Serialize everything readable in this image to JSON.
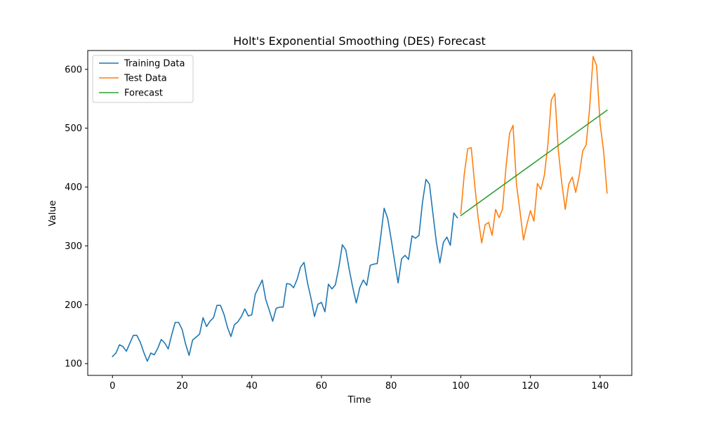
{
  "chart_data": {
    "type": "line",
    "title": "Holt's Exponential Smoothing (DES) Forecast",
    "xlabel": "Time",
    "ylabel": "Value",
    "xlim": [
      -7.1,
      149.1
    ],
    "ylim": [
      80,
      632
    ],
    "xticks": [
      0,
      20,
      40,
      60,
      80,
      100,
      120,
      140
    ],
    "yticks": [
      100,
      200,
      300,
      400,
      500,
      600
    ],
    "grid": false,
    "legend_position": "upper left",
    "series": [
      {
        "name": "Training Data",
        "color": "#1f77b4",
        "x_start": 0,
        "values": [
          112,
          118,
          132,
          129,
          121,
          135,
          148,
          148,
          136,
          119,
          104,
          118,
          115,
          126,
          141,
          135,
          125,
          149,
          170,
          170,
          158,
          133,
          114,
          140,
          145,
          150,
          178,
          163,
          172,
          178,
          199,
          199,
          184,
          162,
          146,
          166,
          171,
          180,
          193,
          181,
          183,
          218,
          230,
          242,
          209,
          191,
          172,
          194,
          196,
          196,
          236,
          235,
          229,
          243,
          264,
          272,
          237,
          211,
          180,
          201,
          204,
          188,
          235,
          227,
          234,
          264,
          302,
          293,
          259,
          229,
          203,
          229,
          242,
          233,
          267,
          269,
          270,
          315,
          364,
          347,
          312,
          274,
          237,
          278,
          284,
          277,
          317,
          313,
          318,
          374,
          413,
          405,
          355,
          306,
          271,
          306,
          315,
          301,
          356,
          348
        ]
      },
      {
        "name": "Test Data",
        "color": "#ff7f0e",
        "x_start": 100,
        "values": [
          355,
          422,
          465,
          467,
          404,
          347,
          305,
          336,
          340,
          318,
          362,
          348,
          363,
          435,
          491,
          505,
          404,
          359,
          310,
          337,
          360,
          342,
          406,
          396,
          420,
          472,
          548,
          559,
          463,
          407,
          362,
          405,
          417,
          391,
          419,
          461,
          472,
          535,
          622,
          606,
          508,
          461,
          390
        ]
      },
      {
        "name": "Forecast",
        "color": "#2ca02c",
        "x": [
          100,
          142
        ],
        "values": [
          351.5,
          530.5
        ]
      }
    ]
  }
}
